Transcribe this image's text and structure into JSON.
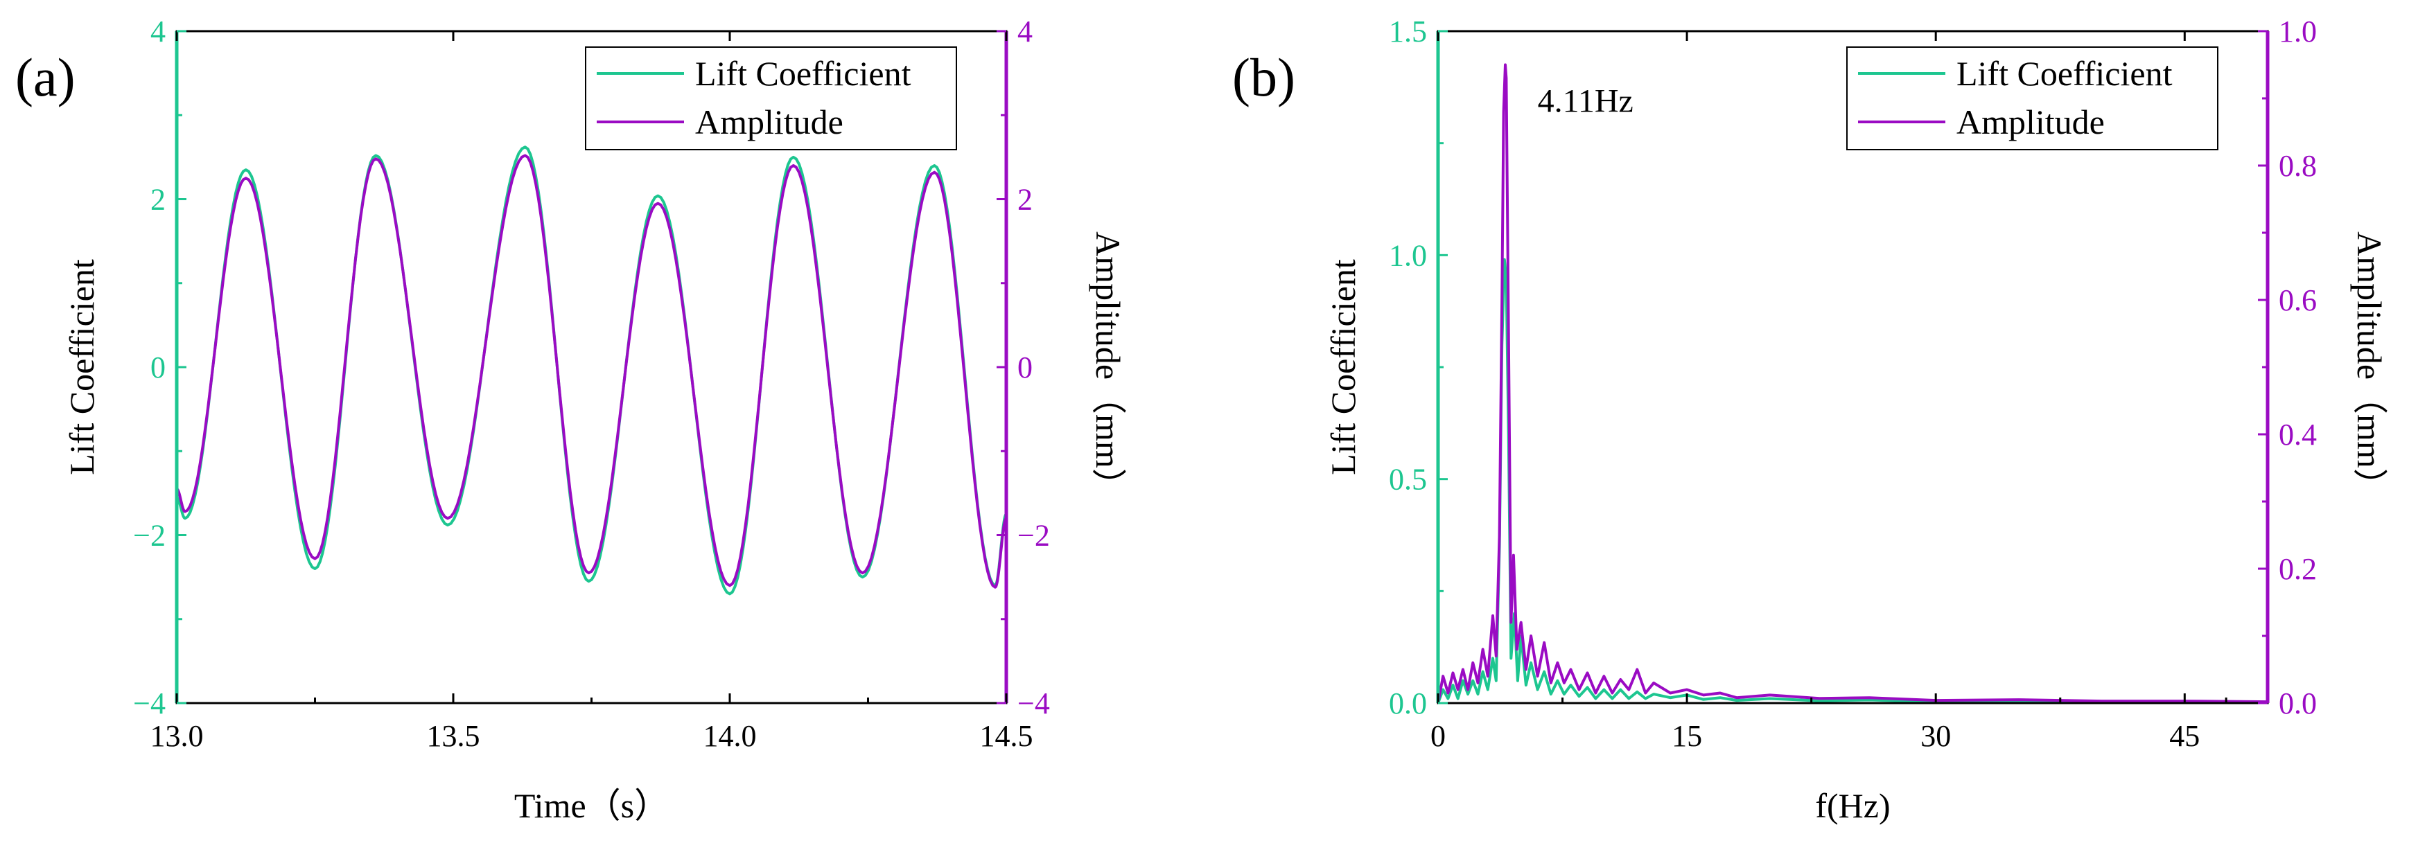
{
  "colors": {
    "lift": "#1dc690",
    "amp": "#9a0bc3",
    "frame": "#000000",
    "bg": "#ffffff"
  },
  "chart_data": [
    {
      "panel_label": "(a)",
      "type": "line",
      "xlabel": "Time（s）",
      "ylabel": "Lift Coefficient",
      "y2label": "Amplitude（mm）",
      "xlim": [
        13.0,
        14.5
      ],
      "ylim": [
        -4,
        4
      ],
      "y2lim": [
        -4,
        4
      ],
      "xticks": [
        13.0,
        13.5,
        14.0,
        14.5
      ],
      "xtick_labels": [
        "13.0",
        "13.5",
        "14.0",
        "14.5"
      ],
      "yticks": [
        -4,
        -2,
        0,
        2,
        4
      ],
      "ytick_labels": [
        "−4",
        "−2",
        "0",
        "2",
        "4"
      ],
      "y2ticks": [
        -4,
        -2,
        0,
        2,
        4
      ],
      "y2tick_labels": [
        "−4",
        "−2",
        "0",
        "2",
        "4"
      ],
      "legend": [
        "Lift Coefficient",
        "Amplitude"
      ],
      "legend_position": "top-right",
      "series": [
        {
          "name": "Lift Coefficient",
          "axis": "left",
          "color_key": "lift",
          "extrema": [
            [
              13.0,
              -1.55
            ],
            [
              13.015,
              -1.8
            ],
            [
              13.125,
              2.35
            ],
            [
              13.25,
              -2.4
            ],
            [
              13.36,
              2.52
            ],
            [
              13.49,
              -1.88
            ],
            [
              13.63,
              2.62
            ],
            [
              13.745,
              -2.55
            ],
            [
              13.87,
              2.04
            ],
            [
              14.0,
              -2.7
            ],
            [
              14.115,
              2.5
            ],
            [
              14.24,
              -2.5
            ],
            [
              14.37,
              2.4
            ],
            [
              14.48,
              -2.6
            ],
            [
              14.5,
              -1.75
            ]
          ]
        },
        {
          "name": "Amplitude",
          "axis": "right",
          "color_key": "amp",
          "extrema": [
            [
              13.0,
              -1.45
            ],
            [
              13.015,
              -1.72
            ],
            [
              13.125,
              2.25
            ],
            [
              13.25,
              -2.28
            ],
            [
              13.36,
              2.48
            ],
            [
              13.49,
              -1.8
            ],
            [
              13.63,
              2.52
            ],
            [
              13.745,
              -2.45
            ],
            [
              13.87,
              1.95
            ],
            [
              14.0,
              -2.6
            ],
            [
              14.115,
              2.4
            ],
            [
              14.24,
              -2.45
            ],
            [
              14.37,
              2.32
            ],
            [
              14.48,
              -2.62
            ],
            [
              14.5,
              -1.8
            ]
          ]
        }
      ]
    },
    {
      "panel_label": "(b)",
      "type": "line",
      "xlabel": "f(Hz)",
      "ylabel": "Lift Coefficient",
      "y2label": "Amplitude（mm）",
      "xlim": [
        0,
        50
      ],
      "ylim": [
        0,
        1.5
      ],
      "y2lim": [
        0,
        1.0
      ],
      "xticks": [
        0,
        15,
        30,
        45
      ],
      "xtick_labels": [
        "0",
        "15",
        "30",
        "45"
      ],
      "yticks": [
        0,
        0.5,
        1.0,
        1.5
      ],
      "ytick_labels": [
        "0.0",
        "0.5",
        "1.0",
        "1.5"
      ],
      "y2ticks": [
        0,
        0.2,
        0.4,
        0.6,
        0.8,
        1.0
      ],
      "y2tick_labels": [
        "0.0",
        "0.2",
        "0.4",
        "0.6",
        "0.8",
        "1.0"
      ],
      "legend": [
        "Lift Coefficient",
        "Amplitude"
      ],
      "legend_position": "top-right",
      "annotation": {
        "text": "4.11Hz",
        "x": 6.0,
        "y": 1.32
      },
      "series": [
        {
          "name": "Lift Coefficient",
          "axis": "left",
          "color_key": "lift",
          "points": [
            [
              0,
              0.0
            ],
            [
              0.3,
              0.03
            ],
            [
              0.6,
              0.01
            ],
            [
              0.9,
              0.04
            ],
            [
              1.2,
              0.01
            ],
            [
              1.5,
              0.05
            ],
            [
              1.8,
              0.02
            ],
            [
              2.1,
              0.05
            ],
            [
              2.4,
              0.02
            ],
            [
              2.7,
              0.07
            ],
            [
              3.0,
              0.03
            ],
            [
              3.3,
              0.1
            ],
            [
              3.5,
              0.05
            ],
            [
              3.7,
              0.35
            ],
            [
              3.85,
              0.8
            ],
            [
              4.0,
              0.99
            ],
            [
              4.11,
              0.95
            ],
            [
              4.25,
              0.6
            ],
            [
              4.4,
              0.1
            ],
            [
              4.6,
              0.2
            ],
            [
              4.8,
              0.05
            ],
            [
              5.0,
              0.15
            ],
            [
              5.3,
              0.04
            ],
            [
              5.6,
              0.09
            ],
            [
              6.0,
              0.03
            ],
            [
              6.4,
              0.07
            ],
            [
              6.8,
              0.02
            ],
            [
              7.2,
              0.05
            ],
            [
              7.6,
              0.02
            ],
            [
              8.0,
              0.04
            ],
            [
              8.5,
              0.015
            ],
            [
              9.0,
              0.035
            ],
            [
              9.5,
              0.01
            ],
            [
              10.0,
              0.03
            ],
            [
              10.5,
              0.01
            ],
            [
              11.0,
              0.03
            ],
            [
              11.5,
              0.01
            ],
            [
              12.0,
              0.025
            ],
            [
              12.5,
              0.01
            ],
            [
              13.0,
              0.02
            ],
            [
              14.0,
              0.012
            ],
            [
              15.0,
              0.018
            ],
            [
              16.0,
              0.008
            ],
            [
              17.0,
              0.012
            ],
            [
              18.0,
              0.006
            ],
            [
              20.0,
              0.01
            ],
            [
              23.0,
              0.005
            ],
            [
              26.0,
              0.007
            ],
            [
              30.0,
              0.003
            ],
            [
              35.0,
              0.004
            ],
            [
              40.0,
              0.002
            ],
            [
              45.0,
              0.002
            ],
            [
              50.0,
              0.001
            ]
          ]
        },
        {
          "name": "Amplitude",
          "axis": "right",
          "color_key": "amp",
          "points": [
            [
              0,
              0.0
            ],
            [
              0.3,
              0.04
            ],
            [
              0.6,
              0.015
            ],
            [
              0.9,
              0.045
            ],
            [
              1.2,
              0.02
            ],
            [
              1.5,
              0.05
            ],
            [
              1.8,
              0.02
            ],
            [
              2.1,
              0.06
            ],
            [
              2.4,
              0.03
            ],
            [
              2.7,
              0.08
            ],
            [
              3.0,
              0.04
            ],
            [
              3.3,
              0.13
            ],
            [
              3.5,
              0.07
            ],
            [
              3.7,
              0.25
            ],
            [
              3.85,
              0.6
            ],
            [
              3.95,
              0.88
            ],
            [
              4.05,
              0.95
            ],
            [
              4.11,
              0.93
            ],
            [
              4.25,
              0.55
            ],
            [
              4.4,
              0.12
            ],
            [
              4.55,
              0.22
            ],
            [
              4.75,
              0.08
            ],
            [
              5.0,
              0.12
            ],
            [
              5.3,
              0.05
            ],
            [
              5.6,
              0.1
            ],
            [
              6.0,
              0.04
            ],
            [
              6.4,
              0.09
            ],
            [
              6.8,
              0.03
            ],
            [
              7.2,
              0.06
            ],
            [
              7.6,
              0.03
            ],
            [
              8.0,
              0.05
            ],
            [
              8.5,
              0.02
            ],
            [
              9.0,
              0.045
            ],
            [
              9.5,
              0.015
            ],
            [
              10.0,
              0.04
            ],
            [
              10.5,
              0.015
            ],
            [
              11.0,
              0.035
            ],
            [
              11.5,
              0.02
            ],
            [
              12.0,
              0.05
            ],
            [
              12.5,
              0.015
            ],
            [
              13.0,
              0.03
            ],
            [
              14.0,
              0.015
            ],
            [
              15.0,
              0.02
            ],
            [
              16.0,
              0.012
            ],
            [
              17.0,
              0.015
            ],
            [
              18.0,
              0.008
            ],
            [
              20.0,
              0.012
            ],
            [
              23.0,
              0.007
            ],
            [
              26.0,
              0.008
            ],
            [
              30.0,
              0.004
            ],
            [
              35.0,
              0.005
            ],
            [
              40.0,
              0.003
            ],
            [
              45.0,
              0.003
            ],
            [
              50.0,
              0.002
            ]
          ]
        }
      ]
    }
  ]
}
